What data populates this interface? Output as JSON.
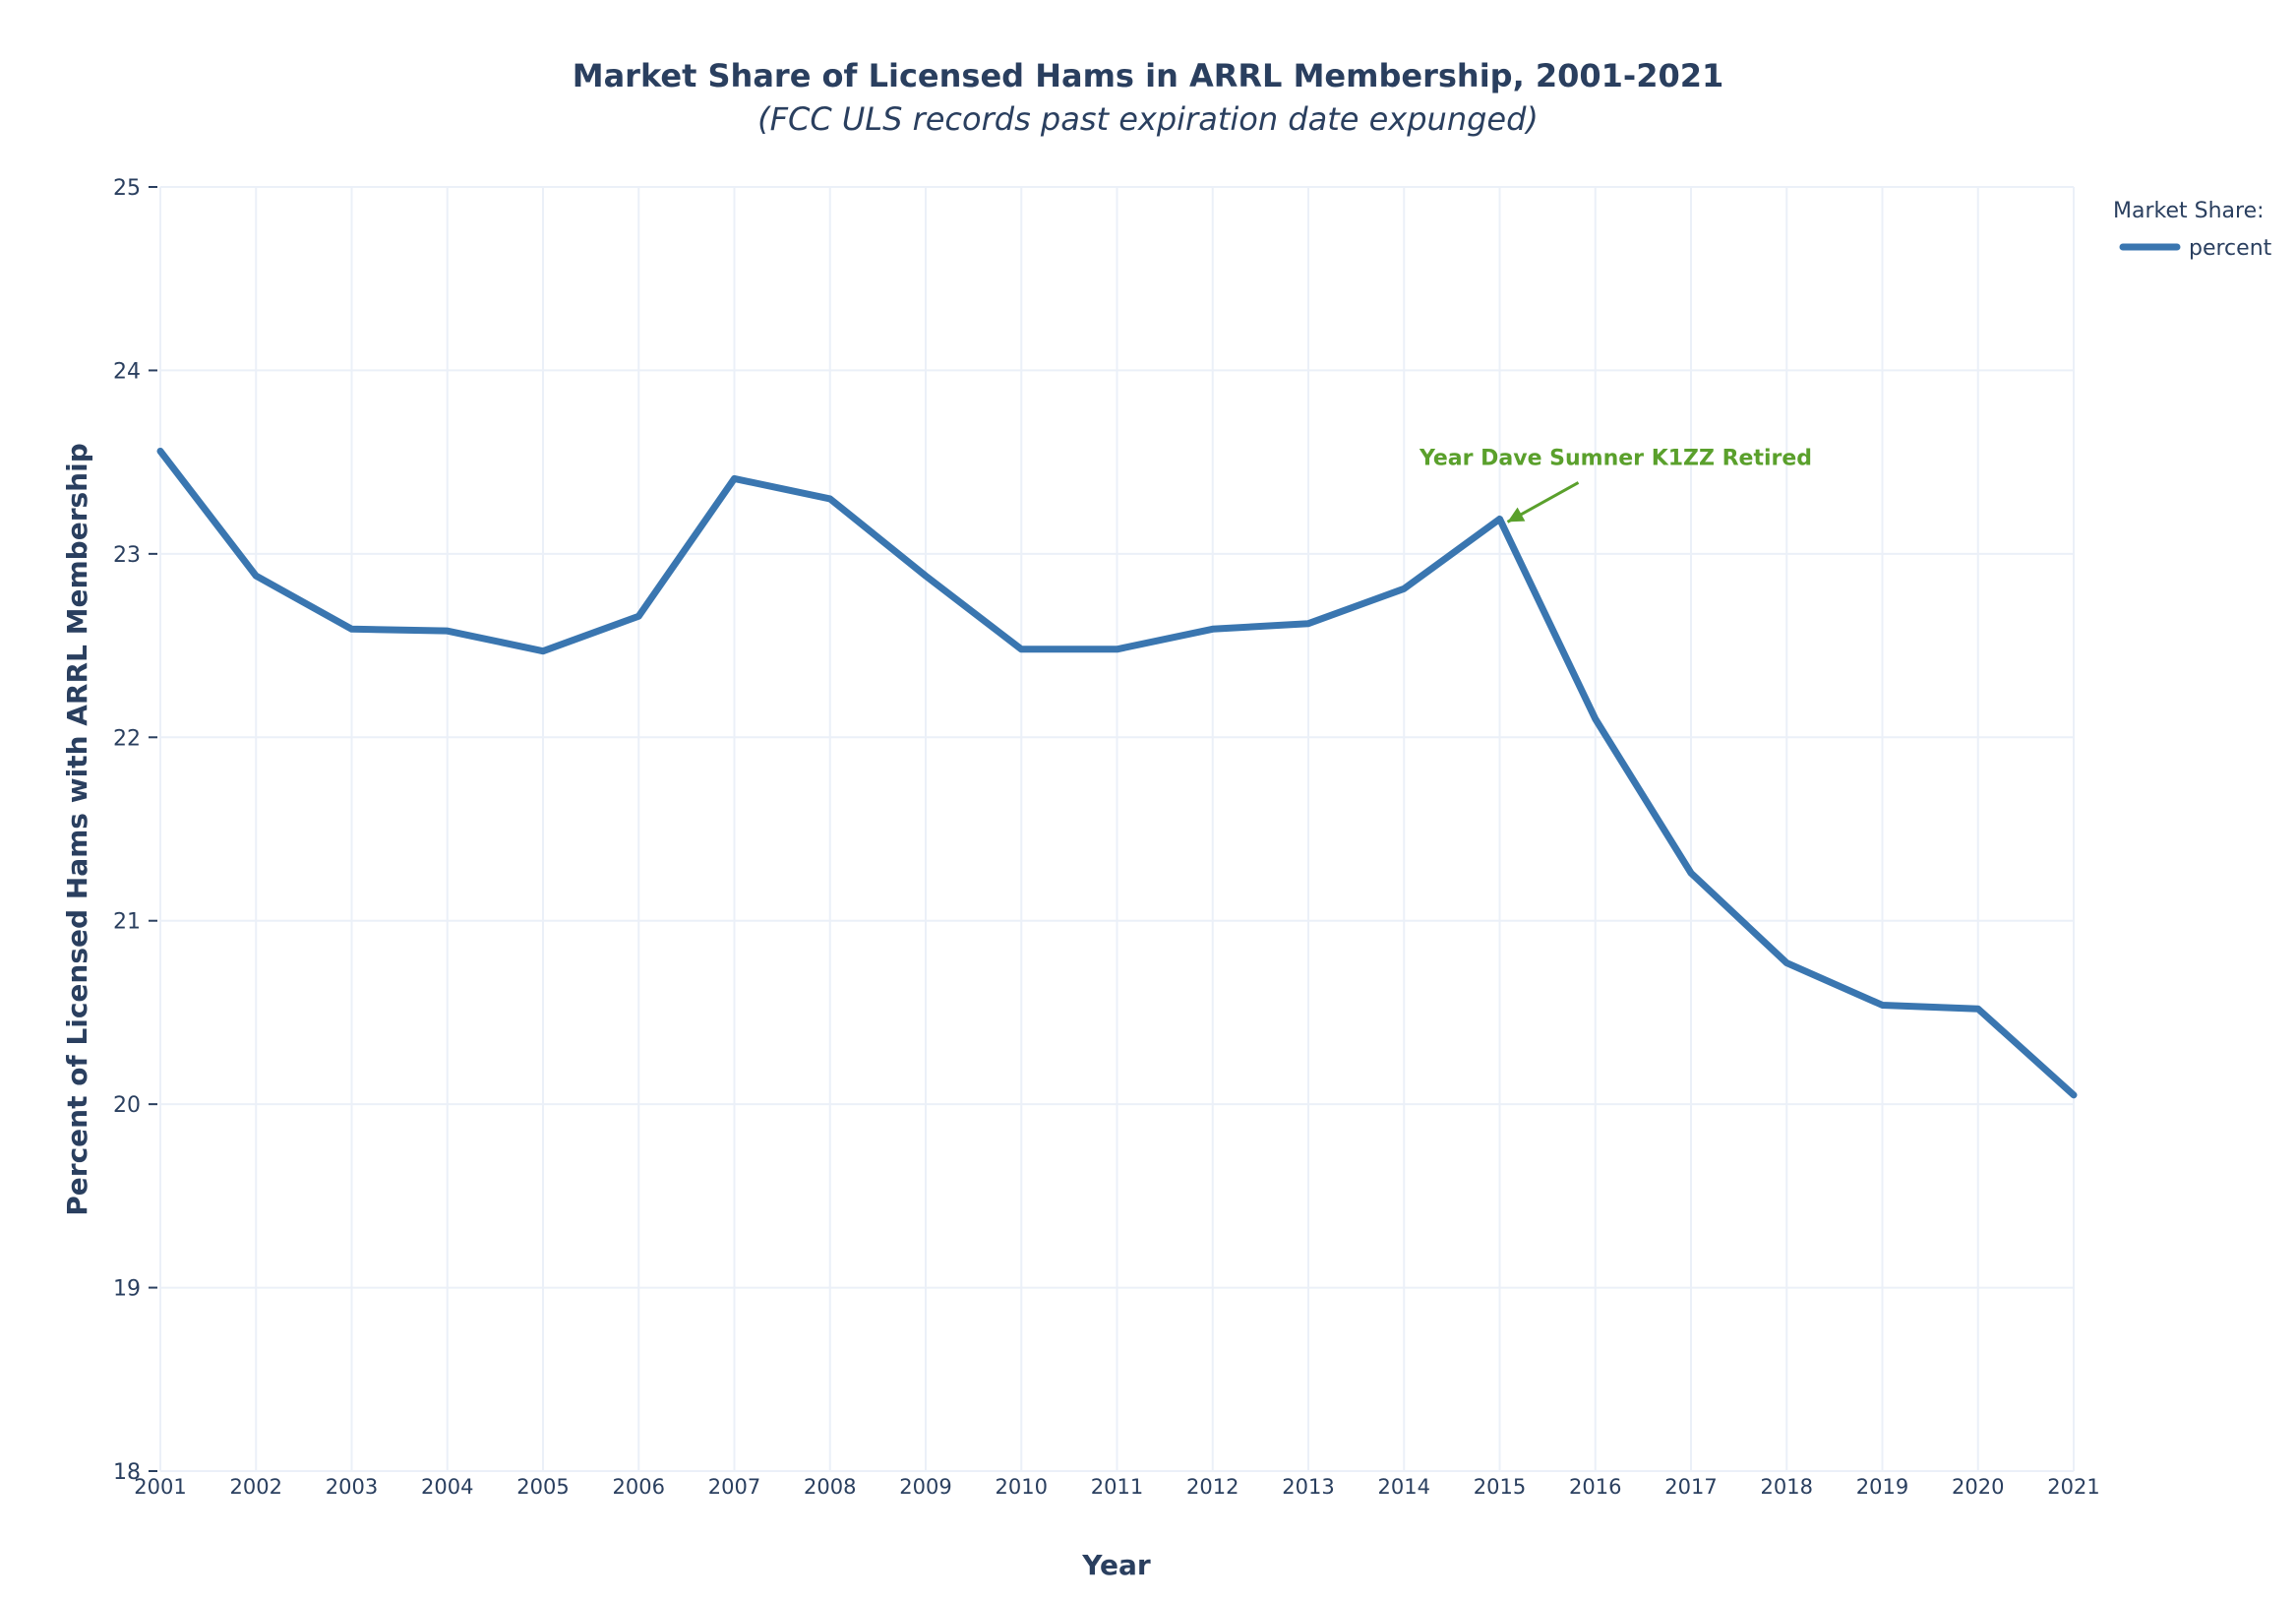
{
  "chart_data": {
    "type": "line",
    "title": "Market Share of Licensed Hams in ARRL Membership, 2001-2021",
    "subtitle": "(FCC ULS records past expiration date expunged)",
    "xlabel": "Year",
    "ylabel": "Percent of Licensed Hams with ARRL Membership",
    "x": [
      "2001",
      "2002",
      "2003",
      "2004",
      "2005",
      "2006",
      "2007",
      "2008",
      "2009",
      "2010",
      "2011",
      "2012",
      "2013",
      "2014",
      "2015",
      "2016",
      "2017",
      "2018",
      "2019",
      "2020",
      "2021"
    ],
    "xlim": [
      2001,
      2021
    ],
    "ylim": [
      18,
      25
    ],
    "yticks": [
      "18",
      "19",
      "20",
      "21",
      "22",
      "23",
      "24",
      "25"
    ],
    "grid": true,
    "series": [
      {
        "name": "percent",
        "color": "#3a76b0",
        "values": [
          23.56,
          22.88,
          22.59,
          22.58,
          22.47,
          22.66,
          23.41,
          23.3,
          22.88,
          22.48,
          22.48,
          22.59,
          22.62,
          22.81,
          23.19,
          22.1,
          21.26,
          20.77,
          20.54,
          20.52,
          20.05
        ]
      }
    ],
    "legend": {
      "title": "Market Share:",
      "position": "top-right",
      "entries": [
        "percent"
      ]
    },
    "annotations": [
      {
        "text": "Year Dave Sumner K1ZZ Retired",
        "x": 2015,
        "y": 23.19,
        "color": "#5aa02c"
      }
    ]
  }
}
